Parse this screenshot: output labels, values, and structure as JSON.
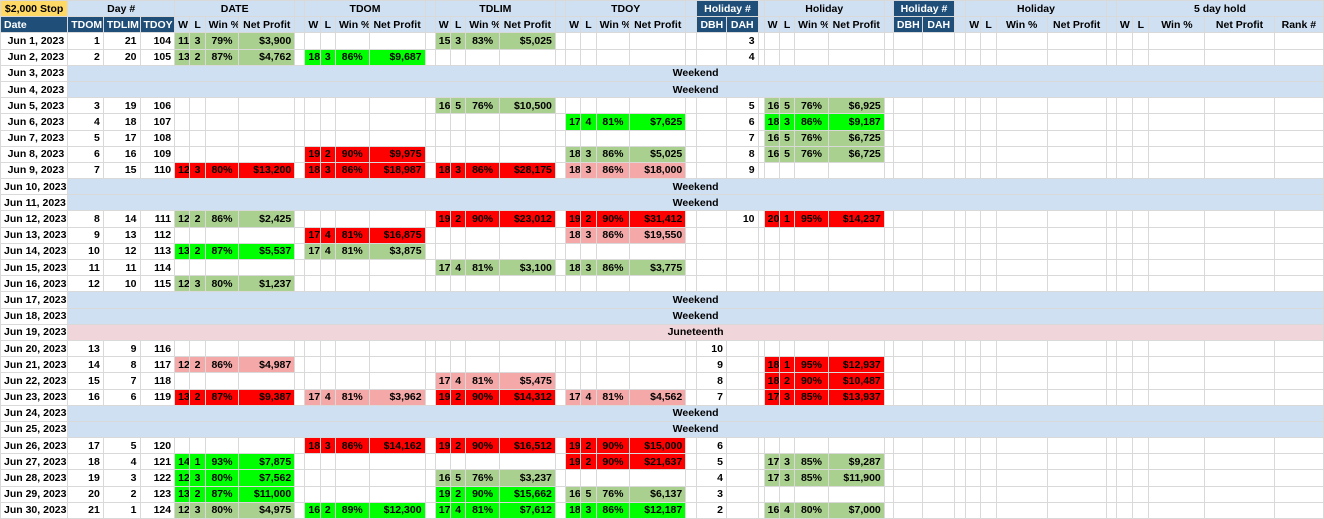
{
  "header_top": {
    "stop": "$2,000 Stop",
    "day_num": "Day #",
    "date_grp": "DATE",
    "tdom_grp": "TDOM",
    "tdlim_grp": "TDLIM",
    "tdoy_grp": "TDOY",
    "holiday_num_1": "Holiday #",
    "holiday_grp_1": "Holiday",
    "holiday_num_2": "Holiday #",
    "holiday_grp_2": "Holiday",
    "five_day": "5 day hold"
  },
  "header_sub": {
    "date": "Date",
    "tdom": "TDOM",
    "tdlim": "TDLIM",
    "tdoy": "TDOY",
    "w": "W",
    "l": "L",
    "winpct": "Win %",
    "net": "Net Profit",
    "dbh": "DBH",
    "dah": "DAH",
    "rank": "Rank #"
  },
  "colors": {
    "light_green": "#a9d08e",
    "bright_green": "#00ff00",
    "red": "#ff0000",
    "pink": "#f4a8a8",
    "header_blue": "#cfe0f3",
    "dark_blue": "#1f4e79",
    "stop_yellow": "#ffd966",
    "holiday_pink": "#f0d5da"
  },
  "rows": [
    {
      "date": "Jun 1, 2023",
      "tdom": "1",
      "tdlim": "21",
      "tdoy": "104",
      "date_g": {
        "w": "11",
        "l": "3",
        "pct": "79%",
        "net": "$3,900",
        "c": "g"
      },
      "tdlim_g": {
        "w": "15",
        "l": "3",
        "pct": "83%",
        "net": "$5,025",
        "c": "g"
      },
      "dah": "3"
    },
    {
      "date": "Jun 2, 2023",
      "tdom": "2",
      "tdlim": "20",
      "tdoy": "105",
      "date_g": {
        "w": "13",
        "l": "2",
        "pct": "87%",
        "net": "$4,762",
        "c": "g"
      },
      "tdom_g": {
        "w": "18",
        "l": "3",
        "pct": "86%",
        "net": "$9,687",
        "c": "bg"
      },
      "dah": "4"
    },
    {
      "date": "Jun 3, 2023",
      "band": "Weekend"
    },
    {
      "date": "Jun 4, 2023",
      "band": "Weekend"
    },
    {
      "date": "Jun 5, 2023",
      "tdom": "3",
      "tdlim": "19",
      "tdoy": "106",
      "tdlim_g": {
        "w": "16",
        "l": "5",
        "pct": "76%",
        "net": "$10,500",
        "c": "g"
      },
      "dah": "5",
      "hol_g": {
        "w": "16",
        "l": "5",
        "pct": "76%",
        "net": "$6,925",
        "c": "g"
      }
    },
    {
      "date": "Jun 6, 2023",
      "tdom": "4",
      "tdlim": "18",
      "tdoy": "107",
      "tdoy_g": {
        "w": "17",
        "l": "4",
        "pct": "81%",
        "net": "$7,625",
        "c": "bg"
      },
      "dah": "6",
      "hol_g": {
        "w": "18",
        "l": "3",
        "pct": "86%",
        "net": "$9,187",
        "c": "bg"
      }
    },
    {
      "date": "Jun 7, 2023",
      "tdom": "5",
      "tdlim": "17",
      "tdoy": "108",
      "dah": "7",
      "hol_g": {
        "w": "16",
        "l": "5",
        "pct": "76%",
        "net": "$6,725",
        "c": "g"
      }
    },
    {
      "date": "Jun 8, 2023",
      "tdom": "6",
      "tdlim": "16",
      "tdoy": "109",
      "tdom_g": {
        "w": "19",
        "l": "2",
        "pct": "90%",
        "net": "$9,975",
        "c": "r"
      },
      "tdoy_g": {
        "w": "18",
        "l": "3",
        "pct": "86%",
        "net": "$5,025",
        "c": "g"
      },
      "dah": "8",
      "hol_g": {
        "w": "16",
        "l": "5",
        "pct": "76%",
        "net": "$6,725",
        "c": "g"
      }
    },
    {
      "date": "Jun 9, 2023",
      "tdom": "7",
      "tdlim": "15",
      "tdoy": "110",
      "date_g": {
        "w": "12",
        "l": "3",
        "pct": "80%",
        "net": "$13,200",
        "c": "r"
      },
      "tdom_g": {
        "w": "18",
        "l": "3",
        "pct": "86%",
        "net": "$18,987",
        "c": "r"
      },
      "tdlim_g": {
        "w": "18",
        "l": "3",
        "pct": "86%",
        "net": "$28,175",
        "c": "r"
      },
      "tdoy_g": {
        "w": "18",
        "l": "3",
        "pct": "86%",
        "net": "$18,000",
        "c": "pr"
      },
      "dah": "9"
    },
    {
      "date": "Jun 10, 2023",
      "band": "Weekend"
    },
    {
      "date": "Jun 11, 2023",
      "band": "Weekend"
    },
    {
      "date": "Jun 12, 2023",
      "tdom": "8",
      "tdlim": "14",
      "tdoy": "111",
      "date_g": {
        "w": "12",
        "l": "2",
        "pct": "86%",
        "net": "$2,425",
        "c": "g"
      },
      "tdlim_g": {
        "w": "19",
        "l": "2",
        "pct": "90%",
        "net": "$23,012",
        "c": "r"
      },
      "tdoy_g": {
        "w": "19",
        "l": "2",
        "pct": "90%",
        "net": "$31,412",
        "c": "r"
      },
      "dah": "10",
      "hol_g": {
        "w": "20",
        "l": "1",
        "pct": "95%",
        "net": "$14,237",
        "c": "r"
      }
    },
    {
      "date": "Jun 13, 2023",
      "tdom": "9",
      "tdlim": "13",
      "tdoy": "112",
      "tdom_g": {
        "w": "17",
        "l": "4",
        "pct": "81%",
        "net": "$16,875",
        "c": "r"
      },
      "tdoy_g": {
        "w": "18",
        "l": "3",
        "pct": "86%",
        "net": "$19,550",
        "c": "pr"
      }
    },
    {
      "date": "Jun 14, 2023",
      "tdom": "10",
      "tdlim": "12",
      "tdoy": "113",
      "date_g": {
        "w": "13",
        "l": "2",
        "pct": "87%",
        "net": "$5,537",
        "c": "bg"
      },
      "tdom_g": {
        "w": "17",
        "l": "4",
        "pct": "81%",
        "net": "$3,875",
        "c": "g"
      }
    },
    {
      "date": "Jun 15, 2023",
      "tdom": "11",
      "tdlim": "11",
      "tdoy": "114",
      "tdlim_g": {
        "w": "17",
        "l": "4",
        "pct": "81%",
        "net": "$3,100",
        "c": "g"
      },
      "tdoy_g": {
        "w": "18",
        "l": "3",
        "pct": "86%",
        "net": "$3,775",
        "c": "g"
      }
    },
    {
      "date": "Jun 16, 2023",
      "tdom": "12",
      "tdlim": "10",
      "tdoy": "115",
      "date_g": {
        "w": "12",
        "l": "3",
        "pct": "80%",
        "net": "$1,237",
        "c": "g"
      }
    },
    {
      "date": "Jun 17, 2023",
      "band": "Weekend"
    },
    {
      "date": "Jun 18, 2023",
      "band": "Weekend"
    },
    {
      "date": "Jun 19, 2023",
      "band": "Juneteenth",
      "holiday": true
    },
    {
      "date": "Jun 20, 2023",
      "tdom": "13",
      "tdlim": "9",
      "tdoy": "116",
      "dbh": "10"
    },
    {
      "date": "Jun 21, 2023",
      "tdom": "14",
      "tdlim": "8",
      "tdoy": "117",
      "date_g": {
        "w": "12",
        "l": "2",
        "pct": "86%",
        "net": "$4,987",
        "c": "pr"
      },
      "dbh": "9",
      "hol_g": {
        "w": "18",
        "l": "1",
        "pct": "95%",
        "net": "$12,937",
        "c": "r"
      }
    },
    {
      "date": "Jun 22, 2023",
      "tdom": "15",
      "tdlim": "7",
      "tdoy": "118",
      "tdlim_g": {
        "w": "17",
        "l": "4",
        "pct": "81%",
        "net": "$5,475",
        "c": "pr"
      },
      "dbh": "8",
      "hol_g": {
        "w": "18",
        "l": "2",
        "pct": "90%",
        "net": "$10,487",
        "c": "r"
      }
    },
    {
      "date": "Jun 23, 2023",
      "tdom": "16",
      "tdlim": "6",
      "tdoy": "119",
      "date_g": {
        "w": "13",
        "l": "2",
        "pct": "87%",
        "net": "$9,387",
        "c": "r"
      },
      "tdom_g": {
        "w": "17",
        "l": "4",
        "pct": "81%",
        "net": "$3,962",
        "c": "pr"
      },
      "tdlim_g": {
        "w": "19",
        "l": "2",
        "pct": "90%",
        "net": "$14,312",
        "c": "r"
      },
      "tdoy_g": {
        "w": "17",
        "l": "4",
        "pct": "81%",
        "net": "$4,562",
        "c": "pr"
      },
      "dbh": "7",
      "hol_g": {
        "w": "17",
        "l": "3",
        "pct": "85%",
        "net": "$13,937",
        "c": "r"
      }
    },
    {
      "date": "Jun 24, 2023",
      "band": "Weekend"
    },
    {
      "date": "Jun 25, 2023",
      "band": "Weekend"
    },
    {
      "date": "Jun 26, 2023",
      "tdom": "17",
      "tdlim": "5",
      "tdoy": "120",
      "tdom_g": {
        "w": "18",
        "l": "3",
        "pct": "86%",
        "net": "$14,162",
        "c": "r"
      },
      "tdlim_g": {
        "w": "19",
        "l": "2",
        "pct": "90%",
        "net": "$16,512",
        "c": "r"
      },
      "tdoy_g": {
        "w": "19",
        "l": "2",
        "pct": "90%",
        "net": "$15,000",
        "c": "r"
      },
      "dbh": "6"
    },
    {
      "date": "Jun 27, 2023",
      "tdom": "18",
      "tdlim": "4",
      "tdoy": "121",
      "date_g": {
        "w": "14",
        "l": "1",
        "pct": "93%",
        "net": "$7,875",
        "c": "bg"
      },
      "tdoy_g": {
        "w": "19",
        "l": "2",
        "pct": "90%",
        "net": "$21,637",
        "c": "r"
      },
      "dbh": "5",
      "hol_g": {
        "w": "17",
        "l": "3",
        "pct": "85%",
        "net": "$9,287",
        "c": "g"
      }
    },
    {
      "date": "Jun 28, 2023",
      "tdom": "19",
      "tdlim": "3",
      "tdoy": "122",
      "date_g": {
        "w": "12",
        "l": "3",
        "pct": "80%",
        "net": "$7,562",
        "c": "bg"
      },
      "tdlim_g": {
        "w": "16",
        "l": "5",
        "pct": "76%",
        "net": "$3,237",
        "c": "g"
      },
      "dbh": "4",
      "hol_g": {
        "w": "17",
        "l": "3",
        "pct": "85%",
        "net": "$11,900",
        "c": "g"
      }
    },
    {
      "date": "Jun 29, 2023",
      "tdom": "20",
      "tdlim": "2",
      "tdoy": "123",
      "date_g": {
        "w": "13",
        "l": "2",
        "pct": "87%",
        "net": "$11,000",
        "c": "bg"
      },
      "tdlim_g": {
        "w": "19",
        "l": "2",
        "pct": "90%",
        "net": "$15,662",
        "c": "bg"
      },
      "tdoy_g": {
        "w": "16",
        "l": "5",
        "pct": "76%",
        "net": "$6,137",
        "c": "g"
      },
      "dbh": "3"
    },
    {
      "date": "Jun 30, 2023",
      "tdom": "21",
      "tdlim": "1",
      "tdoy": "124",
      "date_g": {
        "w": "12",
        "l": "3",
        "pct": "80%",
        "net": "$4,975",
        "c": "g"
      },
      "tdom_g": {
        "w": "16",
        "l": "2",
        "pct": "89%",
        "net": "$12,300",
        "c": "bg"
      },
      "tdlim_g": {
        "w": "17",
        "l": "4",
        "pct": "81%",
        "net": "$7,612",
        "c": "bg"
      },
      "tdoy_g": {
        "w": "18",
        "l": "3",
        "pct": "86%",
        "net": "$12,187",
        "c": "bg"
      },
      "dbh": "2",
      "hol_g": {
        "w": "16",
        "l": "4",
        "pct": "80%",
        "net": "$7,000",
        "c": "g"
      }
    }
  ]
}
